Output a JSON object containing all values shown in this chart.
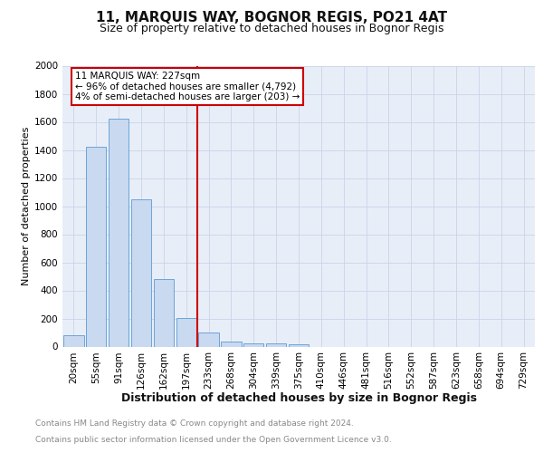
{
  "title": "11, MARQUIS WAY, BOGNOR REGIS, PO21 4AT",
  "subtitle": "Size of property relative to detached houses in Bognor Regis",
  "xlabel": "Distribution of detached houses by size in Bognor Regis",
  "ylabel": "Number of detached properties",
  "footnote1": "Contains HM Land Registry data © Crown copyright and database right 2024.",
  "footnote2": "Contains public sector information licensed under the Open Government Licence v3.0.",
  "bins": [
    "20sqm",
    "55sqm",
    "91sqm",
    "126sqm",
    "162sqm",
    "197sqm",
    "233sqm",
    "268sqm",
    "304sqm",
    "339sqm",
    "375sqm",
    "410sqm",
    "446sqm",
    "481sqm",
    "516sqm",
    "552sqm",
    "587sqm",
    "623sqm",
    "658sqm",
    "694sqm",
    "729sqm"
  ],
  "values": [
    80,
    1420,
    1620,
    1050,
    480,
    205,
    100,
    35,
    25,
    20,
    15,
    0,
    0,
    0,
    0,
    0,
    0,
    0,
    0,
    0,
    0
  ],
  "bar_color": "#c8d9f0",
  "bar_edge_color": "#5b9bd5",
  "vline_index": 6,
  "vline_color": "#cc0000",
  "annotation_line1": "11 MARQUIS WAY: 227sqm",
  "annotation_line2": "← 96% of detached houses are smaller (4,792)",
  "annotation_line3": "4% of semi-detached houses are larger (203) →",
  "annotation_box_edgecolor": "#cc0000",
  "ylim": [
    0,
    2000
  ],
  "yticks": [
    0,
    200,
    400,
    600,
    800,
    1000,
    1200,
    1400,
    1600,
    1800,
    2000
  ],
  "grid_color": "#c9d4e8",
  "background_color": "#e8eef8",
  "title_fontsize": 11,
  "subtitle_fontsize": 9,
  "ylabel_fontsize": 8,
  "xlabel_fontsize": 9,
  "footnote_fontsize": 6.5,
  "tick_fontsize": 7.5,
  "ytick_fontsize": 7.5
}
